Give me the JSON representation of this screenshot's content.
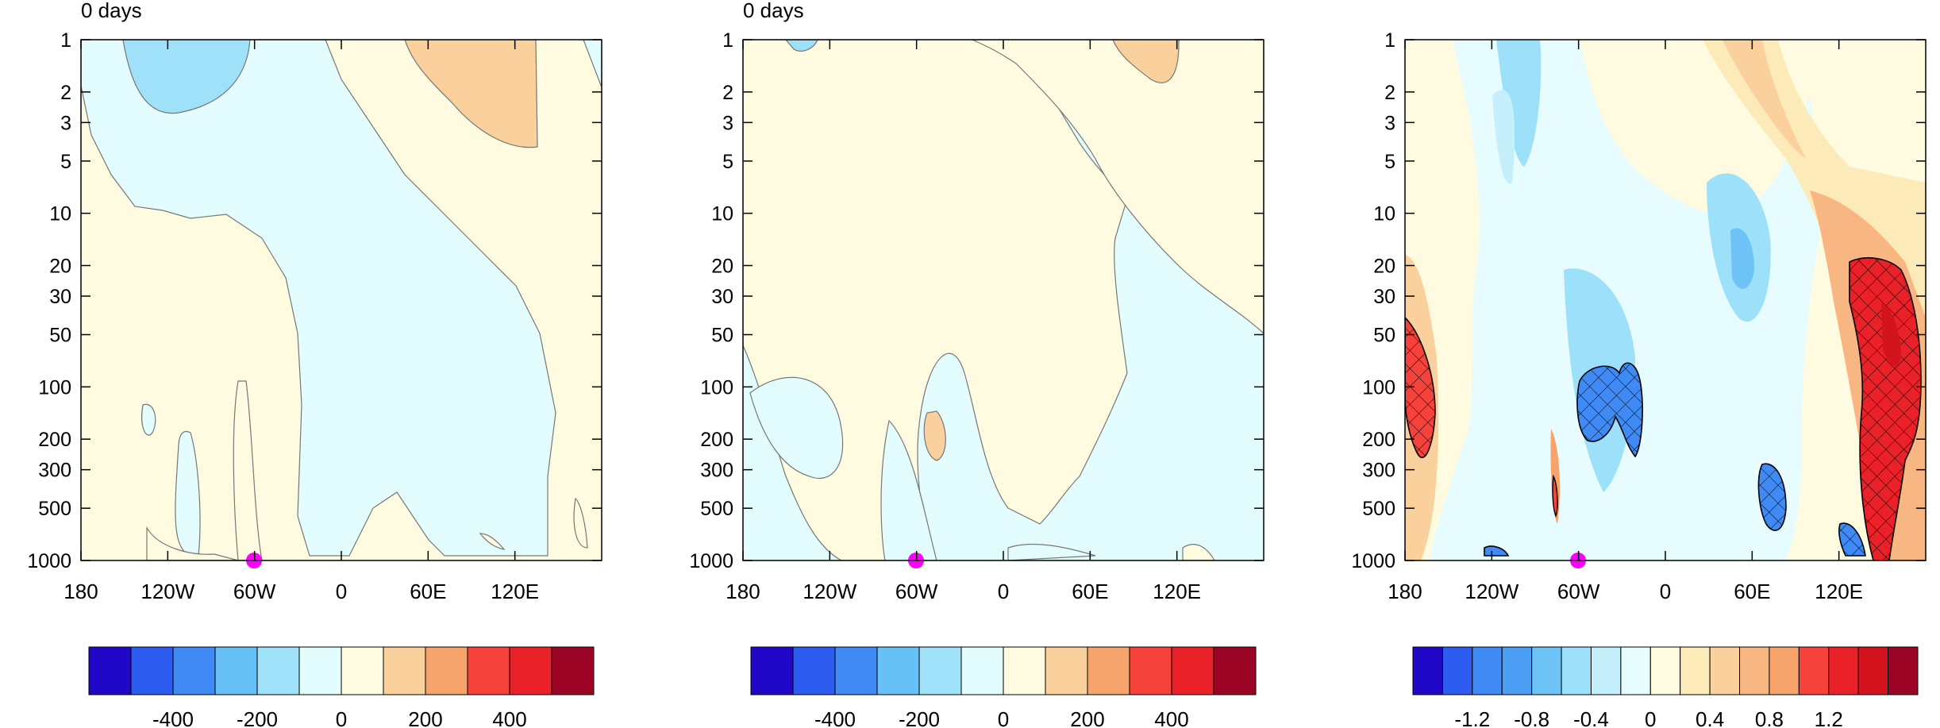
{
  "panels": [
    {
      "title": "0 days",
      "colorbar_labels": [
        "-400",
        "-200",
        "0",
        "200",
        "400"
      ]
    },
    {
      "title": "0 days",
      "colorbar_labels": [
        "-400",
        "-200",
        "0",
        "200",
        "400"
      ]
    },
    {
      "title": "",
      "colorbar_labels": [
        "-1.2",
        "-0.8",
        "-0.4",
        "0",
        "0.4",
        "0.8",
        "1.2"
      ]
    }
  ],
  "chart_data": [
    {
      "type": "heatmap",
      "title": "0 days",
      "x_ticks": [
        "180",
        "120W",
        "60W",
        "0",
        "60E",
        "120E"
      ],
      "y_ticks": [
        "1",
        "2",
        "3",
        "5",
        "10",
        "20",
        "30",
        "50",
        "100",
        "200",
        "300",
        "500",
        "1000"
      ],
      "y_scale": "log",
      "y_inverted": true,
      "colorbar_ticks": [
        "-400",
        "-200",
        "0",
        "200",
        "400"
      ],
      "colorbar_colors": [
        "#2108c8",
        "#2e5bf0",
        "#3f8af4",
        "#68c1f6",
        "#9fe1f9",
        "#e3fdfe",
        "#fefbe0",
        "#fad09c",
        "#f6a46c",
        "#f5433c",
        "#ea2128",
        "#9c0425"
      ],
      "marker": {
        "x": "60W",
        "y": "1000",
        "color": "#ff00ff"
      }
    },
    {
      "type": "heatmap",
      "title": "0 days",
      "x_ticks": [
        "180",
        "120W",
        "60W",
        "0",
        "60E",
        "120E"
      ],
      "y_ticks": [
        "1",
        "2",
        "3",
        "5",
        "10",
        "20",
        "30",
        "50",
        "100",
        "200",
        "300",
        "500",
        "1000"
      ],
      "y_scale": "log",
      "y_inverted": true,
      "colorbar_ticks": [
        "-400",
        "-200",
        "0",
        "200",
        "400"
      ],
      "colorbar_colors": [
        "#2108c8",
        "#2e5bf0",
        "#3f8af4",
        "#68c1f6",
        "#9fe1f9",
        "#e3fdfe",
        "#fefbe0",
        "#fad09c",
        "#f6a46c",
        "#f5433c",
        "#ea2128",
        "#9c0425"
      ],
      "marker": {
        "x": "60W",
        "y": "1000",
        "color": "#ff00ff"
      }
    },
    {
      "type": "heatmap",
      "title": "",
      "x_ticks": [
        "180",
        "120W",
        "60W",
        "0",
        "60E",
        "120E"
      ],
      "y_ticks": [
        "1",
        "2",
        "3",
        "5",
        "10",
        "20",
        "30",
        "50",
        "100",
        "200",
        "300",
        "500",
        "1000"
      ],
      "y_scale": "log",
      "y_inverted": true,
      "colorbar_ticks": [
        "-1.2",
        "-0.8",
        "-0.4",
        "0",
        "0.4",
        "0.8",
        "1.2"
      ],
      "colorbar_colors": [
        "#2108c8",
        "#2e5bf0",
        "#3f8af4",
        "#4c9ef5",
        "#6dc2f6",
        "#9de0f9",
        "#c4effb",
        "#e6fcfe",
        "#fefbe0",
        "#fceab8",
        "#fad09c",
        "#f8b682",
        "#f6a46c",
        "#f5433c",
        "#ea2128",
        "#d3141f",
        "#9c0425"
      ],
      "marker": {
        "x": "60W",
        "y": "1000",
        "color": "#ff00ff"
      },
      "hatching": "cross-hatched regions of significance"
    }
  ]
}
